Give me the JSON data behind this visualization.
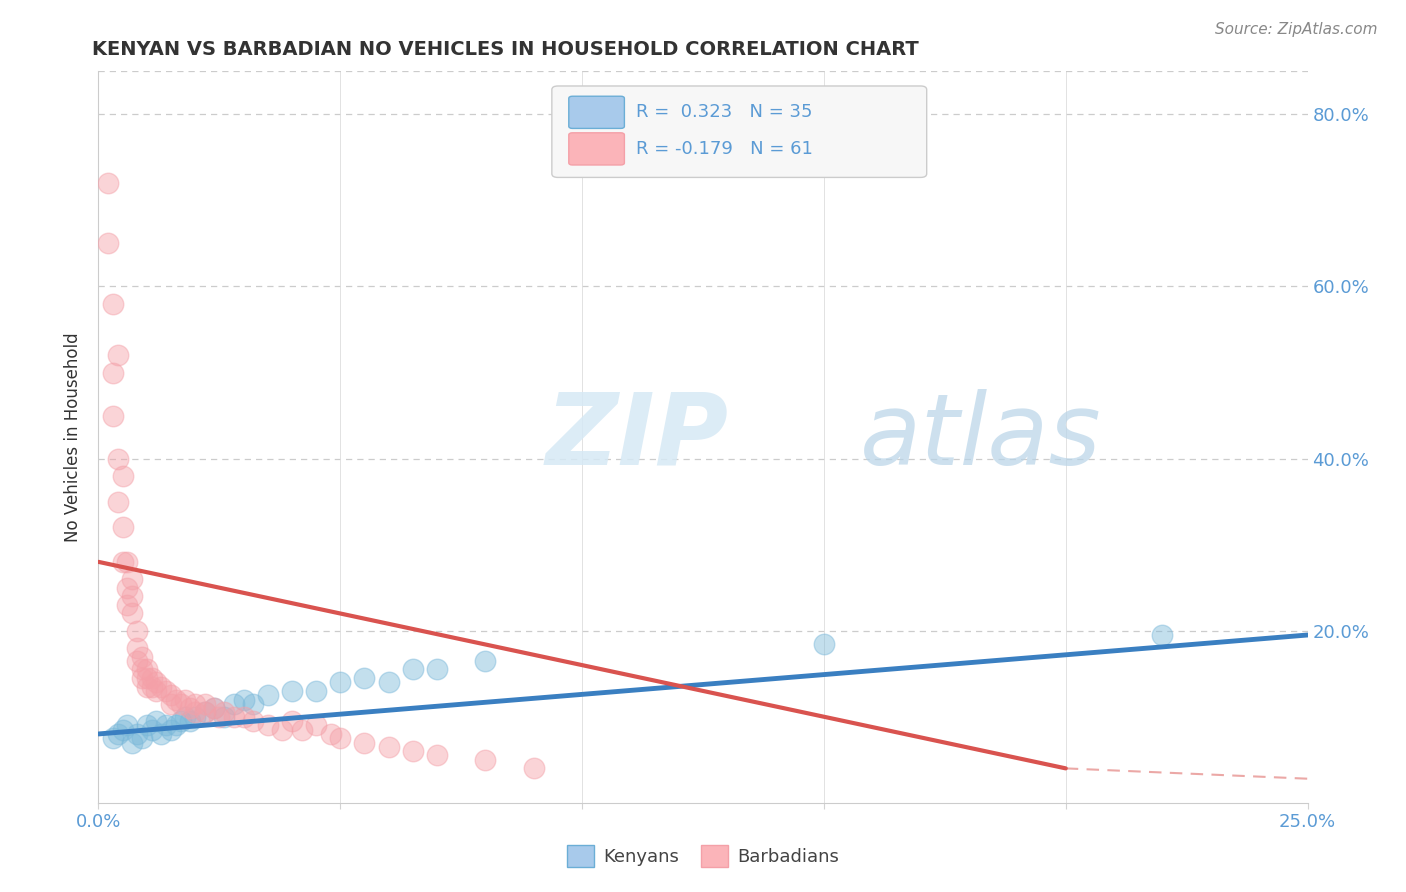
{
  "title": "KENYAN VS BARBADIAN NO VEHICLES IN HOUSEHOLD CORRELATION CHART",
  "source": "Source: ZipAtlas.com",
  "ylabel": "No Vehicles in Household",
  "xlim": [
    0.0,
    0.25
  ],
  "ylim": [
    0.0,
    0.85
  ],
  "kenyan_color": "#7ab8d9",
  "barbadian_color": "#f4a0a8",
  "kenyan_line_color": "#3a7fc1",
  "barbadian_line_color": "#d9534f",
  "kenyan_points": [
    [
      0.003,
      0.075
    ],
    [
      0.004,
      0.08
    ],
    [
      0.005,
      0.085
    ],
    [
      0.006,
      0.09
    ],
    [
      0.007,
      0.07
    ],
    [
      0.008,
      0.08
    ],
    [
      0.009,
      0.075
    ],
    [
      0.01,
      0.09
    ],
    [
      0.011,
      0.085
    ],
    [
      0.012,
      0.095
    ],
    [
      0.013,
      0.08
    ],
    [
      0.014,
      0.09
    ],
    [
      0.015,
      0.085
    ],
    [
      0.016,
      0.09
    ],
    [
      0.017,
      0.095
    ],
    [
      0.018,
      0.1
    ],
    [
      0.019,
      0.095
    ],
    [
      0.02,
      0.1
    ],
    [
      0.022,
      0.105
    ],
    [
      0.024,
      0.11
    ],
    [
      0.026,
      0.1
    ],
    [
      0.028,
      0.115
    ],
    [
      0.03,
      0.12
    ],
    [
      0.032,
      0.115
    ],
    [
      0.035,
      0.125
    ],
    [
      0.04,
      0.13
    ],
    [
      0.045,
      0.13
    ],
    [
      0.05,
      0.14
    ],
    [
      0.055,
      0.145
    ],
    [
      0.06,
      0.14
    ],
    [
      0.065,
      0.155
    ],
    [
      0.07,
      0.155
    ],
    [
      0.08,
      0.165
    ],
    [
      0.15,
      0.185
    ],
    [
      0.22,
      0.195
    ]
  ],
  "barbadian_points": [
    [
      0.002,
      0.72
    ],
    [
      0.002,
      0.65
    ],
    [
      0.003,
      0.58
    ],
    [
      0.003,
      0.5
    ],
    [
      0.003,
      0.45
    ],
    [
      0.004,
      0.52
    ],
    [
      0.004,
      0.4
    ],
    [
      0.004,
      0.35
    ],
    [
      0.005,
      0.38
    ],
    [
      0.005,
      0.32
    ],
    [
      0.005,
      0.28
    ],
    [
      0.006,
      0.28
    ],
    [
      0.006,
      0.25
    ],
    [
      0.006,
      0.23
    ],
    [
      0.007,
      0.26
    ],
    [
      0.007,
      0.24
    ],
    [
      0.007,
      0.22
    ],
    [
      0.008,
      0.2
    ],
    [
      0.008,
      0.18
    ],
    [
      0.008,
      0.165
    ],
    [
      0.009,
      0.17
    ],
    [
      0.009,
      0.155
    ],
    [
      0.009,
      0.145
    ],
    [
      0.01,
      0.155
    ],
    [
      0.01,
      0.145
    ],
    [
      0.01,
      0.135
    ],
    [
      0.011,
      0.145
    ],
    [
      0.011,
      0.135
    ],
    [
      0.012,
      0.14
    ],
    [
      0.012,
      0.13
    ],
    [
      0.013,
      0.135
    ],
    [
      0.014,
      0.13
    ],
    [
      0.015,
      0.125
    ],
    [
      0.015,
      0.115
    ],
    [
      0.016,
      0.12
    ],
    [
      0.017,
      0.115
    ],
    [
      0.018,
      0.12
    ],
    [
      0.019,
      0.11
    ],
    [
      0.02,
      0.115
    ],
    [
      0.02,
      0.105
    ],
    [
      0.022,
      0.115
    ],
    [
      0.022,
      0.105
    ],
    [
      0.024,
      0.11
    ],
    [
      0.025,
      0.1
    ],
    [
      0.026,
      0.105
    ],
    [
      0.028,
      0.1
    ],
    [
      0.03,
      0.1
    ],
    [
      0.032,
      0.095
    ],
    [
      0.035,
      0.09
    ],
    [
      0.038,
      0.085
    ],
    [
      0.04,
      0.095
    ],
    [
      0.042,
      0.085
    ],
    [
      0.045,
      0.09
    ],
    [
      0.048,
      0.08
    ],
    [
      0.05,
      0.075
    ],
    [
      0.055,
      0.07
    ],
    [
      0.06,
      0.065
    ],
    [
      0.065,
      0.06
    ],
    [
      0.07,
      0.055
    ],
    [
      0.08,
      0.05
    ],
    [
      0.09,
      0.04
    ]
  ],
  "kenyan_line": [
    0.0,
    0.25,
    0.08,
    0.195
  ],
  "barbadian_line": [
    0.0,
    0.2,
    0.28,
    0.04
  ]
}
